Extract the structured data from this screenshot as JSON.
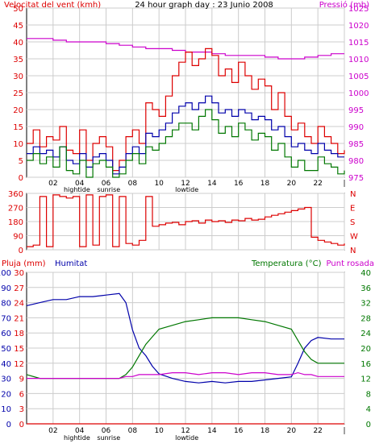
{
  "colors": {
    "red": "#dd0000",
    "magenta": "#cc00cc",
    "blue": "#0000aa",
    "green": "#007700",
    "grid": "#cccccc",
    "panel_bg": "#ffffff"
  },
  "chart_data": [
    {
      "type": "line",
      "title": "24 hour graph day : 23 Junio 2008",
      "left_axis_label": "Velocitat del vent (kmh)",
      "right_axis_label": "Pressió (mb)",
      "x_ticks": [
        "02",
        "04",
        "06",
        "08",
        "10",
        "12",
        "14",
        "16",
        "18",
        "20",
        "22",
        "|"
      ],
      "annotations": [
        {
          "label": "hightide",
          "x_hour": 3.8
        },
        {
          "label": "sunrise",
          "x_hour": 6.2
        },
        {
          "label": "lowtide",
          "x_hour": 12.1
        }
      ],
      "xlim": [
        0,
        24
      ],
      "ylim_left": [
        0,
        50
      ],
      "y_ticks_left": [
        0,
        5,
        10,
        15,
        20,
        25,
        30,
        35,
        40,
        45,
        50
      ],
      "ylim_right": [
        975,
        1025
      ],
      "y_ticks_right": [
        975,
        980,
        985,
        990,
        995,
        1000,
        1005,
        1010,
        1015,
        1020,
        1025
      ],
      "grid": true,
      "series": [
        {
          "axis": "right",
          "color_key": "magenta",
          "x": [
            0,
            1,
            2,
            3,
            4,
            5,
            6,
            7,
            8,
            9,
            10,
            11,
            12,
            13,
            14,
            15,
            16,
            17,
            18,
            19,
            20,
            21,
            22,
            23,
            24
          ],
          "y": [
            1016,
            1016,
            1015.5,
            1015,
            1015,
            1015,
            1014.5,
            1014,
            1013.5,
            1013,
            1013,
            1012.5,
            1012,
            1012,
            1011.5,
            1011,
            1011,
            1011,
            1010.5,
            1010,
            1010,
            1010.5,
            1011,
            1011.5,
            1011.5
          ]
        },
        {
          "axis": "left",
          "color_key": "red",
          "x": [
            0,
            0.5,
            1,
            1.5,
            2,
            2.5,
            3,
            3.5,
            4,
            4.5,
            5,
            5.5,
            6,
            6.5,
            7,
            7.5,
            8,
            8.5,
            9,
            9.5,
            10,
            10.5,
            11,
            11.5,
            12,
            12.5,
            13,
            13.5,
            14,
            14.5,
            15,
            15.5,
            16,
            16.5,
            17,
            17.5,
            18,
            18.5,
            19,
            19.5,
            20,
            20.5,
            21,
            21.5,
            22,
            22.5,
            23,
            23.5,
            24
          ],
          "y": [
            10,
            14,
            9,
            12,
            11,
            15,
            8,
            7,
            14,
            5,
            10,
            12,
            9,
            2,
            5,
            12,
            14,
            10,
            22,
            20,
            18,
            24,
            30,
            34,
            37,
            33,
            35,
            38,
            36,
            30,
            32,
            28,
            34,
            30,
            26,
            29,
            27,
            20,
            25,
            18,
            14,
            16,
            12,
            10,
            15,
            12,
            10,
            7,
            8
          ]
        },
        {
          "axis": "left",
          "color_key": "blue",
          "x": [
            0,
            0.5,
            1,
            1.5,
            2,
            2.5,
            3,
            3.5,
            4,
            4.5,
            5,
            5.5,
            6,
            6.5,
            7,
            7.5,
            8,
            8.5,
            9,
            9.5,
            10,
            10.5,
            11,
            11.5,
            12,
            12.5,
            13,
            13.5,
            14,
            14.5,
            15,
            15.5,
            16,
            16.5,
            17,
            17.5,
            18,
            18.5,
            19,
            19.5,
            20,
            20.5,
            21,
            21.5,
            22,
            22.5,
            23,
            23.5,
            24
          ],
          "y": [
            7,
            9,
            7,
            8,
            6,
            9,
            5,
            4,
            7,
            3,
            6,
            7,
            5,
            1,
            3,
            7,
            9,
            7,
            13,
            12,
            14,
            16,
            19,
            21,
            22,
            20,
            22,
            24,
            22,
            19,
            20,
            18,
            20,
            19,
            17,
            18,
            17,
            14,
            15,
            12,
            9,
            10,
            8,
            7,
            10,
            8,
            7,
            6,
            6
          ]
        },
        {
          "axis": "left",
          "color_key": "green",
          "x": [
            0,
            0.5,
            1,
            1.5,
            2,
            2.5,
            3,
            3.5,
            4,
            4.5,
            5,
            5.5,
            6,
            6.5,
            7,
            7.5,
            8,
            8.5,
            9,
            9.5,
            10,
            10.5,
            11,
            11.5,
            12,
            12.5,
            13,
            13.5,
            14,
            14.5,
            15,
            15.5,
            16,
            16.5,
            17,
            17.5,
            18,
            18.5,
            19,
            19.5,
            20,
            20.5,
            21,
            21.5,
            22,
            22.5,
            23,
            23.5,
            24
          ],
          "y": [
            5,
            7,
            4,
            6,
            3,
            9,
            2,
            1,
            5,
            0,
            4,
            5,
            3,
            0,
            1,
            5,
            7,
            4,
            9,
            8,
            10,
            12,
            14,
            16,
            16,
            14,
            18,
            20,
            17,
            13,
            15,
            12,
            16,
            14,
            11,
            13,
            12,
            8,
            10,
            6,
            3,
            5,
            2,
            2,
            6,
            4,
            3,
            1,
            2
          ]
        }
      ]
    },
    {
      "type": "scatter",
      "right_axis_labels": [
        "N",
        "W",
        "S",
        "E",
        "N"
      ],
      "xlim": [
        0,
        24
      ],
      "ylim_left": [
        0,
        360
      ],
      "y_ticks_left": [
        0,
        90,
        180,
        270,
        360
      ],
      "grid": true,
      "series": [
        {
          "axis": "left",
          "color_key": "red",
          "x": [
            0,
            0.5,
            1,
            1.5,
            2,
            2.5,
            3,
            3.5,
            4,
            4.5,
            5,
            5.5,
            6,
            6.5,
            7,
            7.5,
            8,
            8.5,
            9,
            9.5,
            10,
            10.5,
            11,
            11.5,
            12,
            12.5,
            13,
            13.5,
            14,
            14.5,
            15,
            15.5,
            16,
            16.5,
            17,
            17.5,
            18,
            18.5,
            19,
            19.5,
            20,
            20.5,
            21,
            21.5,
            22,
            22.5,
            23,
            23.5,
            24
          ],
          "y": [
            20,
            30,
            340,
            20,
            350,
            340,
            330,
            340,
            20,
            350,
            30,
            340,
            350,
            20,
            340,
            40,
            30,
            60,
            340,
            150,
            160,
            170,
            175,
            160,
            180,
            185,
            170,
            190,
            180,
            185,
            175,
            190,
            185,
            200,
            190,
            195,
            210,
            220,
            230,
            240,
            250,
            260,
            270,
            80,
            60,
            50,
            40,
            30,
            40
          ]
        }
      ]
    },
    {
      "type": "line",
      "left_axis_labels": [
        {
          "text": "Pluja (mm)",
          "color_key": "red"
        },
        {
          "text": "Humitat",
          "color_key": "blue"
        }
      ],
      "right_axis_labels": [
        {
          "text": "Temperatura (°C)",
          "color_key": "green"
        },
        {
          "text": "Punt rosada",
          "color_key": "magenta"
        }
      ],
      "x_ticks": [
        "02",
        "04",
        "06",
        "08",
        "10",
        "12",
        "14",
        "16",
        "18",
        "20",
        "22",
        "|"
      ],
      "annotations": [
        {
          "label": "hightide",
          "x_hour": 3.8
        },
        {
          "label": "sunrise",
          "x_hour": 6.2
        },
        {
          "label": "lowtide",
          "x_hour": 12.1
        }
      ],
      "xlim": [
        0,
        24
      ],
      "ylim_left": [
        0,
        100
      ],
      "y_ticks_left_inner": [
        0,
        3,
        6,
        9,
        12,
        15,
        18,
        21,
        24,
        27,
        30
      ],
      "y_ticks_left_outer": [
        0,
        10,
        20,
        30,
        40,
        50,
        60,
        70,
        80,
        90,
        100
      ],
      "ylim_right": [
        0,
        40
      ],
      "y_ticks_right": [
        0,
        4,
        8,
        12,
        16,
        20,
        24,
        28,
        32,
        36,
        40
      ],
      "grid": true,
      "series": [
        {
          "axis": "left",
          "color_key": "blue",
          "x": [
            0,
            1,
            2,
            3,
            4,
            5,
            6,
            7,
            7.5,
            8,
            8.5,
            9,
            9.5,
            10,
            11,
            12,
            13,
            14,
            15,
            16,
            17,
            18,
            19,
            20,
            20.5,
            21,
            21.5,
            22,
            23,
            24
          ],
          "y": [
            78,
            80,
            82,
            82,
            84,
            84,
            85,
            86,
            80,
            62,
            50,
            45,
            38,
            33,
            30,
            28,
            27,
            28,
            27,
            28,
            28,
            29,
            30,
            31,
            40,
            50,
            55,
            57,
            56,
            56
          ]
        },
        {
          "axis": "right",
          "color_key": "green",
          "x": [
            0,
            1,
            2,
            3,
            4,
            5,
            6,
            7,
            7.5,
            8,
            8.5,
            9,
            9.5,
            10,
            11,
            12,
            13,
            14,
            15,
            16,
            17,
            18,
            19,
            20,
            20.5,
            21,
            21.5,
            22,
            23,
            24
          ],
          "y": [
            13,
            12,
            12,
            12,
            12,
            12,
            12,
            12,
            13,
            15,
            18,
            21,
            23,
            25,
            26,
            27,
            27.5,
            28,
            28,
            28,
            27.5,
            27,
            26,
            25,
            22,
            19,
            17,
            16,
            16,
            16
          ]
        },
        {
          "axis": "right",
          "color_key": "magenta",
          "x": [
            0,
            1,
            2,
            3,
            4,
            5,
            6,
            7,
            7.5,
            8,
            8.5,
            9,
            9.5,
            10,
            11,
            12,
            13,
            14,
            15,
            16,
            17,
            18,
            19,
            20,
            20.5,
            21,
            21.5,
            22,
            23,
            24
          ],
          "y": [
            12,
            12,
            12,
            12,
            12,
            12,
            12,
            12,
            12.5,
            12.5,
            13,
            13,
            13,
            13,
            13.5,
            13.5,
            13,
            13.5,
            13.5,
            13,
            13.5,
            13.5,
            13,
            13,
            13.5,
            13,
            13,
            12.5,
            12.5,
            12.5
          ]
        },
        {
          "axis": "left",
          "color_key": "red",
          "x": [
            0,
            24
          ],
          "y": [
            0,
            0
          ]
        }
      ]
    }
  ]
}
